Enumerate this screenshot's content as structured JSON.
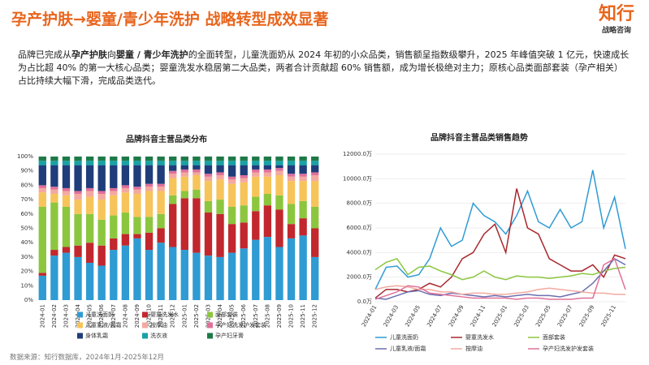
{
  "page": {
    "title": "孕产护肤→婴童/青少年洗护 战略转型成效显著",
    "logo": {
      "name": "知行",
      "tagline": "战略咨询"
    },
    "summary": [
      {
        "text": "品牌已完成从",
        "bold": false
      },
      {
        "text": "孕产护肤",
        "bold": true
      },
      {
        "text": "向",
        "bold": false
      },
      {
        "text": "婴童 / 青少年洗护",
        "bold": true
      },
      {
        "text": "的全面转型，儿童洗面奶从 2024 年初的小众品类，销售额呈指数级攀升，2025 年峰值突破 1 亿元，快速成长为占比超 40% 的第一大核心品类；婴童洗发水稳居第二大品类，两者合计贡献超 60% 销售额，成为增长极绝对主力；原核心品类面部套装（孕产相关）占比持续大幅下滑，完成品类迭代。",
        "bold": false
      }
    ],
    "source": "数据来源：知行数据库，2024年1月-2025年12月"
  },
  "chart_data": [
    {
      "type": "stacked_bar",
      "title": "品牌抖音主营品类分布",
      "categories": [
        "2024-01",
        "2024-02",
        "2024-03",
        "2024-04",
        "2024-05",
        "2024-06",
        "2024-07",
        "2024-08",
        "2024-09",
        "2024-10",
        "2024-11",
        "2024-12",
        "2025-01",
        "2025-02",
        "2025-03",
        "2025-04",
        "2025-05",
        "2025-06",
        "2025-07",
        "2025-08",
        "2025-09",
        "2025-10",
        "2025-11",
        "2025-12"
      ],
      "ylim": [
        0,
        100
      ],
      "yticks": [
        {
          "value": 0,
          "label": "0%"
        },
        {
          "value": 10,
          "label": "10%"
        },
        {
          "value": 20,
          "label": "20%"
        },
        {
          "value": 30,
          "label": "30%"
        },
        {
          "value": 40,
          "label": "40%"
        },
        {
          "value": 50,
          "label": "50%"
        },
        {
          "value": 60,
          "label": "60%"
        },
        {
          "value": 70,
          "label": "70%"
        },
        {
          "value": 80,
          "label": "80%"
        },
        {
          "value": 90,
          "label": "90%"
        },
        {
          "value": 100,
          "label": "100%"
        }
      ],
      "series": [
        {
          "name": "儿童洗面奶",
          "color": "#2f9bd3",
          "values": [
            17,
            31,
            33,
            30,
            26,
            24,
            35,
            38,
            43,
            35,
            40,
            37,
            35,
            33,
            31,
            30,
            33,
            36,
            42,
            44,
            37,
            43,
            45,
            30
          ]
        },
        {
          "name": "婴童洗发水",
          "color": "#c1272d",
          "values": [
            2,
            4,
            4,
            8,
            14,
            14,
            8,
            8,
            3,
            12,
            10,
            30,
            36,
            38,
            30,
            30,
            20,
            18,
            20,
            22,
            26,
            10,
            12,
            20
          ]
        },
        {
          "name": "面部套装",
          "color": "#8cc63f",
          "values": [
            46,
            33,
            28,
            22,
            20,
            18,
            16,
            15,
            12,
            11,
            10,
            6,
            5,
            6,
            8,
            10,
            12,
            12,
            10,
            8,
            10,
            14,
            12,
            15
          ]
        },
        {
          "name": "儿童乳液/面霜",
          "color": "#f7c45a",
          "values": [
            10,
            6,
            8,
            10,
            12,
            14,
            14,
            14,
            16,
            18,
            16,
            12,
            10,
            10,
            14,
            14,
            16,
            16,
            14,
            12,
            14,
            16,
            14,
            18
          ]
        },
        {
          "name": "按摩油",
          "color": "#f4a9a0",
          "values": [
            3,
            3,
            3,
            4,
            4,
            4,
            3,
            3,
            3,
            3,
            3,
            3,
            3,
            2,
            3,
            3,
            3,
            3,
            3,
            3,
            3,
            3,
            3,
            4
          ]
        },
        {
          "name": "孕产妇洗发护发套装",
          "color": "#e0709a",
          "values": [
            2,
            2,
            2,
            2,
            2,
            2,
            2,
            2,
            2,
            2,
            2,
            2,
            2,
            2,
            2,
            2,
            2,
            2,
            2,
            2,
            2,
            2,
            2,
            2
          ]
        },
        {
          "name": "身体乳霜",
          "color": "#1f3d7a",
          "values": [
            14,
            15,
            16,
            18,
            16,
            18,
            16,
            14,
            15,
            13,
            13,
            4,
            3,
            3,
            6,
            5,
            8,
            7,
            3,
            3,
            2,
            6,
            6,
            5
          ]
        },
        {
          "name": "洗衣液",
          "color": "#17a2a6",
          "values": [
            3,
            3,
            3,
            3,
            3,
            3,
            3,
            3,
            3,
            3,
            3,
            3,
            3,
            3,
            3,
            3,
            3,
            3,
            3,
            3,
            3,
            3,
            3,
            3
          ]
        },
        {
          "name": "孕产妇牙膏",
          "color": "#1d7a48",
          "values": [
            3,
            3,
            3,
            3,
            3,
            3,
            3,
            3,
            3,
            3,
            3,
            3,
            3,
            3,
            3,
            3,
            3,
            3,
            3,
            3,
            3,
            3,
            3,
            3
          ]
        }
      ]
    },
    {
      "type": "line",
      "title": "品牌抖音主营品类销售趋势",
      "categories": [
        "2024-01",
        null,
        "2024-03",
        null,
        "2024-05",
        null,
        "2024-07",
        null,
        "2024-09",
        null,
        "2024-11",
        null,
        "2025-01",
        null,
        "2025-03",
        null,
        "2025-05",
        null,
        "2025-07",
        null,
        "2025-09",
        null,
        "2025-11",
        null
      ],
      "ylim": [
        0,
        12000
      ],
      "yticks": [
        {
          "value": 0,
          "label": "0.0万"
        },
        {
          "value": 2000,
          "label": "2000.0万"
        },
        {
          "value": 4000,
          "label": "4000.0万"
        },
        {
          "value": 6000,
          "label": "6000.0万"
        },
        {
          "value": 8000,
          "label": "8000.0万"
        },
        {
          "value": 10000,
          "label": "10000.0万"
        },
        {
          "value": 12000,
          "label": "12000.0万"
        }
      ],
      "series": [
        {
          "name": "儿童洗面奶",
          "color": "#2f9bd3",
          "values": [
            1000,
            2800,
            2900,
            2000,
            2200,
            3500,
            6000,
            4500,
            5000,
            8000,
            7000,
            6500,
            5500,
            7000,
            9000,
            6500,
            6000,
            7500,
            6000,
            6500,
            10700,
            6000,
            8500,
            4300
          ]
        },
        {
          "name": "婴童洗发水",
          "color": "#a8282d",
          "values": [
            300,
            1000,
            1000,
            800,
            1000,
            1500,
            1200,
            2000,
            3500,
            4000,
            5500,
            6300,
            4000,
            9200,
            6000,
            5500,
            3500,
            3000,
            2500,
            2500,
            3000,
            2000,
            3800,
            3500
          ]
        },
        {
          "name": "面部套装",
          "color": "#8cc63f",
          "values": [
            2600,
            3200,
            3500,
            2200,
            2800,
            2900,
            2500,
            2200,
            1800,
            2000,
            2500,
            2000,
            1800,
            2100,
            2000,
            2000,
            1900,
            2000,
            2100,
            2300,
            2200,
            2500,
            2700,
            2800
          ]
        },
        {
          "name": "儿童乳液/面霜",
          "color": "#6b6fb0",
          "values": [
            300,
            200,
            500,
            800,
            900,
            600,
            500,
            700,
            600,
            500,
            400,
            500,
            400,
            500,
            600,
            500,
            500,
            400,
            600,
            800,
            1500,
            2500,
            3500,
            3000
          ]
        },
        {
          "name": "按摩油",
          "color": "#f4a9a0",
          "values": [
            1000,
            1200,
            1300,
            1200,
            1000,
            1000,
            800,
            800,
            600,
            700,
            700,
            600,
            600,
            700,
            800,
            1000,
            1100,
            1000,
            900,
            800,
            700,
            700,
            600,
            600
          ]
        },
        {
          "name": "孕产妇洗发护发套装",
          "color": "#e0709a",
          "values": [
            200,
            500,
            800,
            1300,
            1200,
            700,
            600,
            500,
            400,
            300,
            300,
            300,
            300,
            200,
            300,
            300,
            200,
            200,
            200,
            300,
            300,
            3000,
            3500,
            1000
          ]
        }
      ]
    }
  ]
}
